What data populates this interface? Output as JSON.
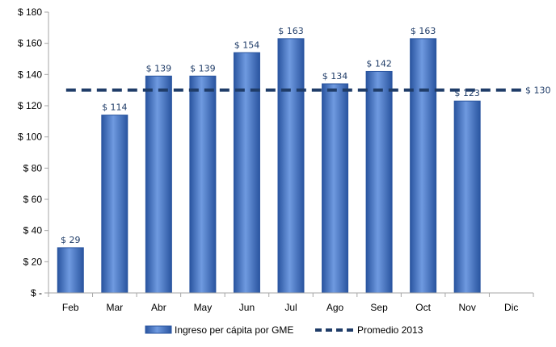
{
  "chart_data": {
    "type": "bar",
    "categories": [
      "Feb",
      "Mar",
      "Abr",
      "May",
      "Jun",
      "Jul",
      "Ago",
      "Sep",
      "Oct",
      "Nov",
      "Dic"
    ],
    "series": [
      {
        "name": "Ingreso per cápita por GME",
        "type": "bar",
        "values": [
          29,
          114,
          139,
          139,
          154,
          163,
          134,
          142,
          163,
          123,
          null
        ],
        "labels": [
          "$ 29",
          "$ 114",
          "$ 139",
          "$ 139",
          "$ 154",
          "$ 163",
          "$ 134",
          "$ 142",
          "$ 163",
          "$ 123",
          ""
        ]
      },
      {
        "name": "Promedio 2013",
        "type": "line",
        "style": "dashed",
        "value": 130,
        "label": "$ 130"
      }
    ],
    "ylim": [
      0,
      180
    ],
    "yticks": [
      0,
      20,
      40,
      60,
      80,
      100,
      120,
      140,
      160,
      180
    ],
    "ytick_labels": [
      "$ -",
      "$ 20",
      "$ 40",
      "$ 60",
      "$ 80",
      "$ 100",
      "$ 120",
      "$ 140",
      "$ 160",
      "$ 180"
    ],
    "title": "",
    "xlabel": "",
    "ylabel": "",
    "grid": false,
    "legend_position": "bottom",
    "colors": {
      "bar": "#3a6fc4",
      "bar_edge": "#2a55a0",
      "bar_light": "#6f9ae0",
      "line": "#1f3c68",
      "label": "#1f3c68",
      "axis": "#a6a6a6"
    }
  }
}
